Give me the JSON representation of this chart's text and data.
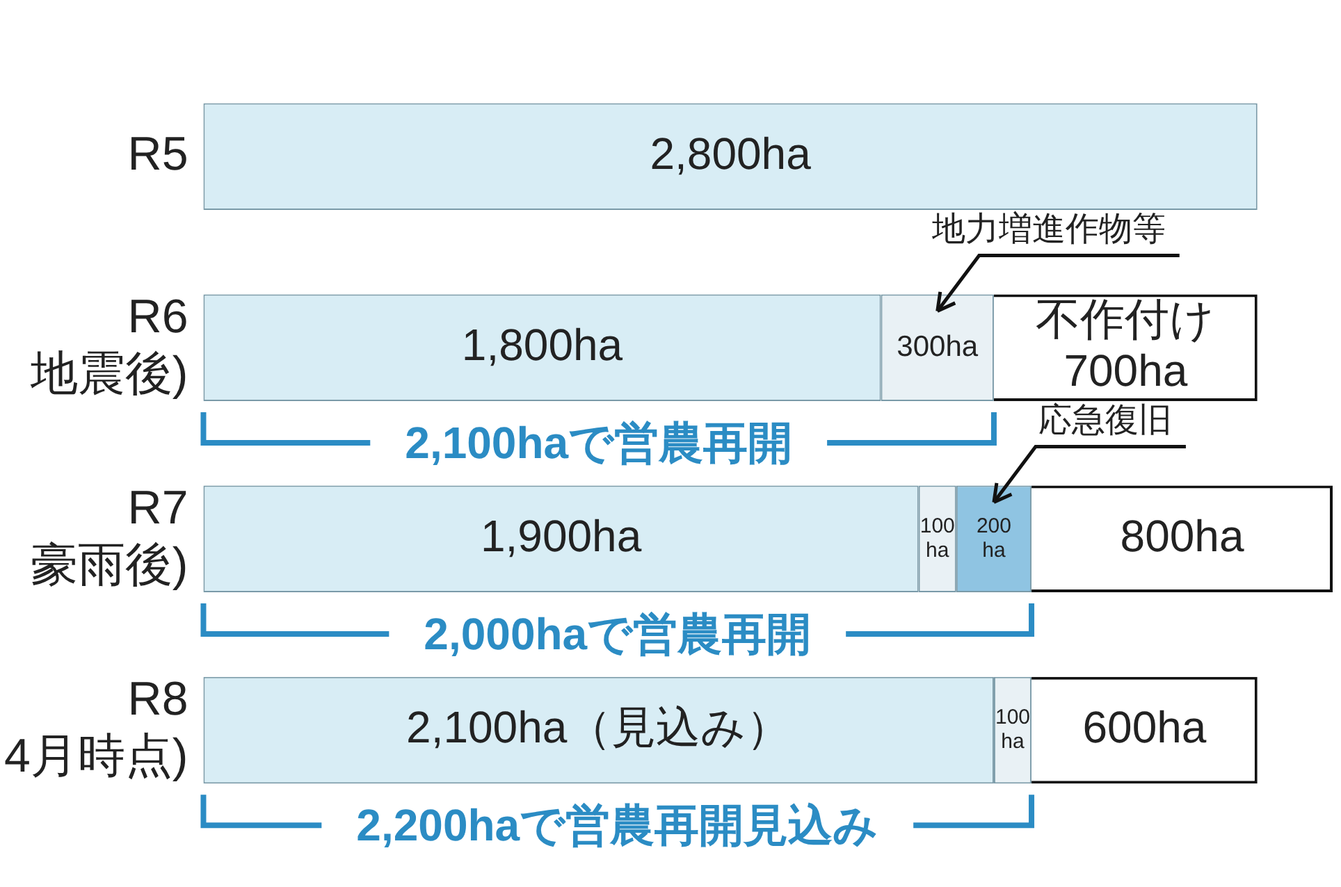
{
  "chart_data": {
    "type": "bar",
    "orientation": "horizontal",
    "stacked": true,
    "tick_labels": "y",
    "categories": [
      "R5",
      "R6\n地震後)",
      "R7\n豪雨後)",
      "R8\n4月時点)"
    ],
    "series": [
      {
        "color": "#d8edf5",
        "values": [
          2800,
          1800,
          1900,
          2100
        ],
        "value_labels": [
          "2,800ha",
          "1,800ha",
          "1,900ha",
          "2,100ha（見込み）"
        ]
      },
      {
        "name": "地力増進作物等",
        "color": "#e9f1f5",
        "values": [
          0,
          300,
          100,
          100
        ],
        "value_labels": [
          null,
          "300ha",
          "100\nha",
          "100\nha"
        ]
      },
      {
        "name": "応急復旧",
        "color": "#8fc4e2",
        "values": [
          0,
          0,
          200,
          0
        ],
        "value_labels": [
          null,
          null,
          "200\nha",
          null
        ]
      },
      {
        "color": "#ffffff",
        "values": [
          0,
          700,
          800,
          600
        ],
        "value_labels": [
          null,
          "不作付け\n700ha",
          "800ha",
          "600ha"
        ]
      }
    ],
    "annotations": [
      "2,100haで営農再開",
      "2,000haで営農再開",
      "2,200haで営農再開見込み"
    ]
  }
}
